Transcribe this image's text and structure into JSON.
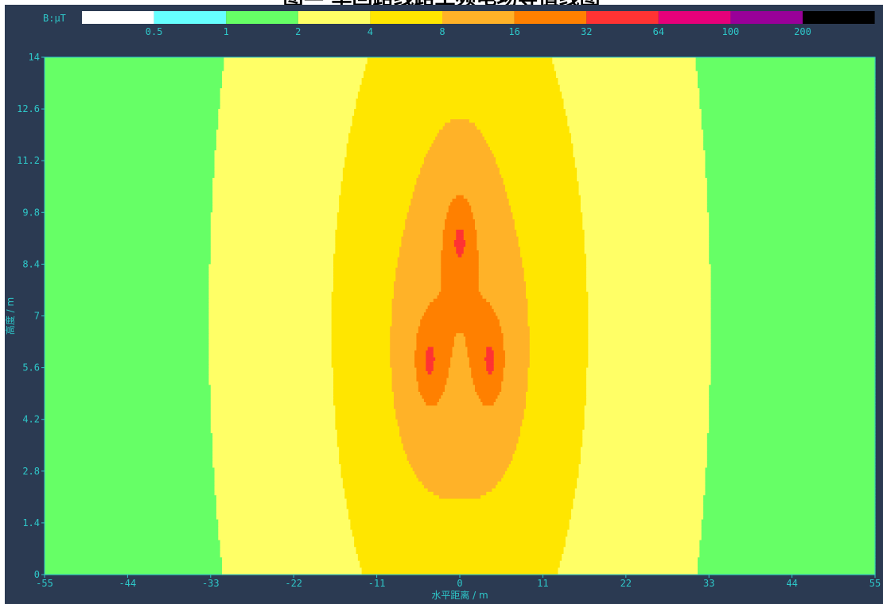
{
  "title": "图— 单回路线路工频电场等值线图",
  "chart_data": {
    "type": "heatmap",
    "xlabel": "水平距离 / m",
    "ylabel": "高度 / m",
    "xlim": [
      -55,
      55
    ],
    "ylim": [
      0,
      14
    ],
    "x_ticks": [
      "-55",
      "-44",
      "-33",
      "-22",
      "-11",
      "0",
      "11",
      "22",
      "33",
      "44",
      "55"
    ],
    "y_ticks": [
      "0",
      "1.4",
      "2.8",
      "4.2",
      "5.6",
      "7",
      "8.4",
      "9.8",
      "11.2",
      "12.6",
      "14"
    ],
    "legend": {
      "label": "B:μT",
      "thresholds": [
        "0.5",
        "1",
        "2",
        "4",
        "8",
        "16",
        "32",
        "64",
        "100",
        "200"
      ],
      "colors": [
        "#ffffff",
        "#66ffff",
        "#66ff66",
        "#ffff66",
        "#ffe600",
        "#ffb228",
        "#ff8000",
        "#ff3333",
        "#e6007a",
        "#990099",
        "#000000"
      ]
    },
    "conductors": [
      {
        "x": 0,
        "y": 9.0
      },
      {
        "x": -4,
        "y": 5.8
      },
      {
        "x": 4,
        "y": 5.8
      }
    ],
    "grid": false
  }
}
